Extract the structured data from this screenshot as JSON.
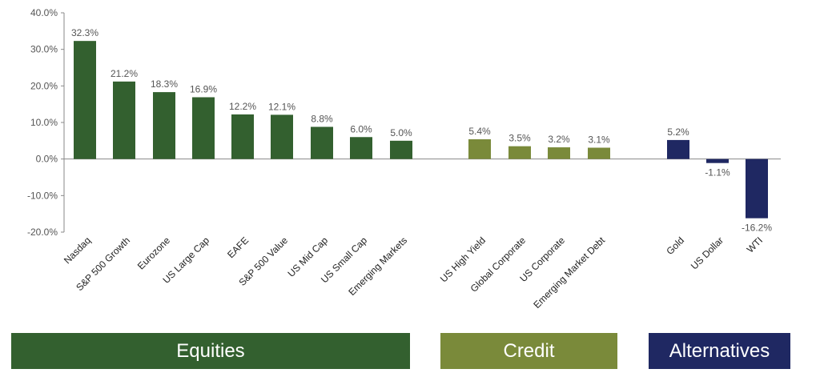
{
  "chart_data": {
    "type": "bar",
    "title": "",
    "xlabel": "",
    "ylabel": "",
    "ylim": [
      -20,
      40
    ],
    "y_ticks": [
      "40.0%",
      "30.0%",
      "20.0%",
      "10.0%",
      "0.0%",
      "-10.0%",
      "-20.0%"
    ],
    "y_tick_values": [
      40,
      30,
      20,
      10,
      0,
      -10,
      -20
    ],
    "grid": false,
    "groups": [
      {
        "name": "Equities",
        "color": "#33602f",
        "categories": [
          "Nasdaq",
          "S&P 500 Growth",
          "Eurozone",
          "US Large Cap",
          "EAFE",
          "S&P 500 Value",
          "US Mid Cap",
          "US Small Cap",
          "Emerging Markets"
        ],
        "values": [
          32.3,
          21.2,
          18.3,
          16.9,
          12.2,
          12.1,
          8.8,
          6.0,
          5.0
        ],
        "labels": [
          "32.3%",
          "21.2%",
          "18.3%",
          "16.9%",
          "12.2%",
          "12.1%",
          "8.8%",
          "6.0%",
          "5.0%"
        ]
      },
      {
        "name": "Credit",
        "color": "#7a8a3a",
        "categories": [
          "US High Yield",
          "Global Corporate",
          "US Corporate",
          "Emerging Market Debt"
        ],
        "values": [
          5.4,
          3.5,
          3.2,
          3.1
        ],
        "labels": [
          "5.4%",
          "3.5%",
          "3.2%",
          "3.1%"
        ]
      },
      {
        "name": "Alternatives",
        "color": "#1f2862",
        "categories": [
          "Gold",
          "US Dollar",
          "WTI"
        ],
        "values": [
          5.2,
          -1.1,
          -16.2
        ],
        "labels": [
          "5.2%",
          "-1.1%",
          "-16.2%"
        ]
      }
    ]
  }
}
